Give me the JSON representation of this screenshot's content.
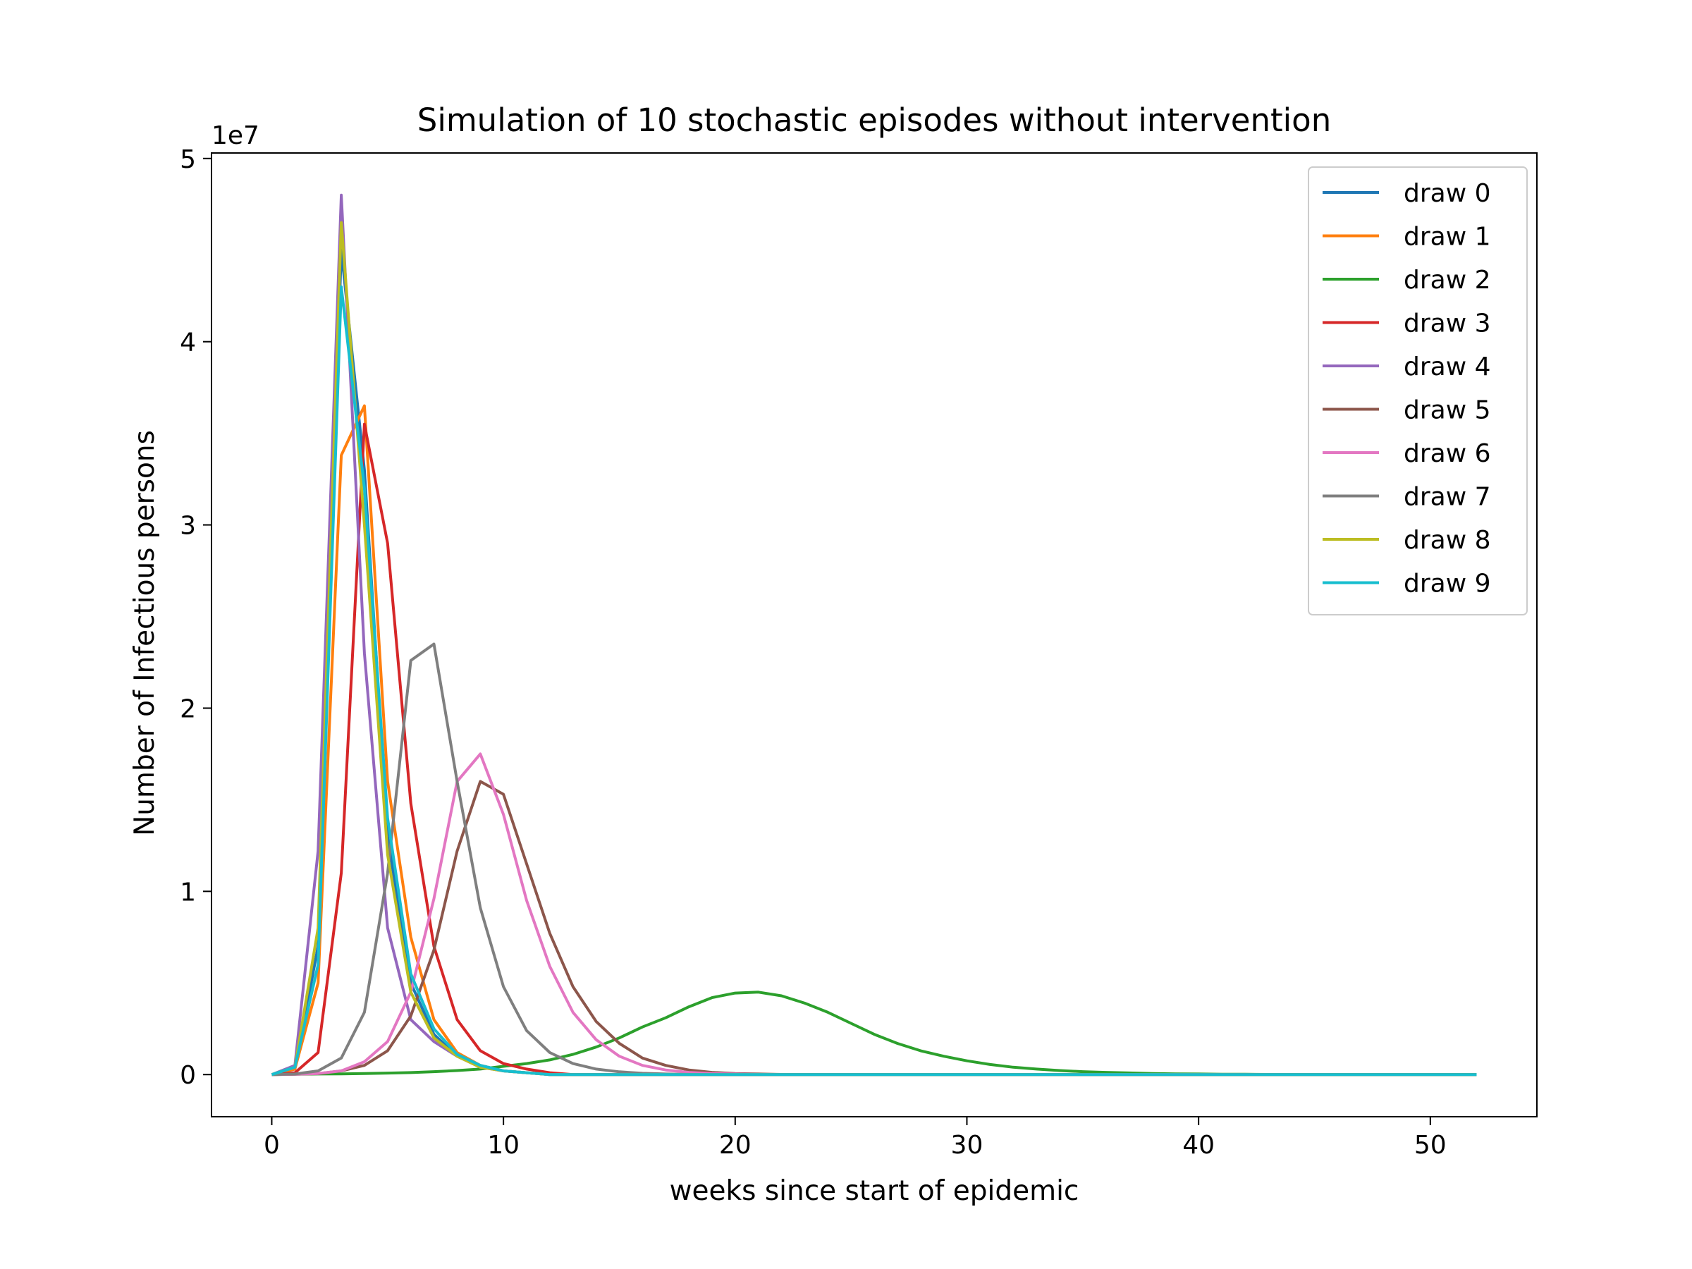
{
  "chart_data": {
    "type": "line",
    "title": "Simulation of 10 stochastic episodes without intervention",
    "xlabel": "weeks since start of epidemic",
    "ylabel": "Number of Infectious persons",
    "y_offset_label": "1e7",
    "xlim": [
      -2.6,
      54.6
    ],
    "ylim": [
      -0.23,
      5.03
    ],
    "x_ticks": [
      0,
      10,
      20,
      30,
      40,
      50
    ],
    "y_ticks": [
      0,
      1,
      2,
      3,
      4,
      5
    ],
    "grid": false,
    "legend_position": "top-right",
    "x": [
      0,
      1,
      2,
      3,
      4,
      5,
      6,
      7,
      8,
      9,
      10,
      11,
      12,
      13,
      14,
      15,
      16,
      17,
      18,
      19,
      20,
      21,
      22,
      23,
      24,
      25,
      26,
      27,
      28,
      29,
      30,
      31,
      32,
      33,
      34,
      35,
      36,
      37,
      38,
      39,
      40,
      41,
      42,
      43,
      44,
      45,
      46,
      47,
      48,
      49,
      50,
      51,
      52
    ],
    "series": [
      {
        "name": "draw 0",
        "color": "#1f77b4",
        "values": [
          0,
          0.03,
          0.7,
          4.5,
          3.3,
          1.3,
          0.5,
          0.22,
          0.1,
          0.05,
          0.02,
          0.01,
          0,
          0,
          0,
          0,
          0,
          0,
          0,
          0,
          0,
          0,
          0,
          0,
          0,
          0,
          0,
          0,
          0,
          0,
          0,
          0,
          0,
          0,
          0,
          0,
          0,
          0,
          0,
          0,
          0,
          0,
          0,
          0,
          0,
          0,
          0,
          0,
          0,
          0,
          0,
          0,
          0
        ]
      },
      {
        "name": "draw 1",
        "color": "#ff7f0e",
        "values": [
          0,
          0.03,
          0.5,
          3.38,
          3.65,
          1.6,
          0.75,
          0.3,
          0.12,
          0.05,
          0.02,
          0.01,
          0,
          0,
          0,
          0,
          0,
          0,
          0,
          0,
          0,
          0,
          0,
          0,
          0,
          0,
          0,
          0,
          0,
          0,
          0,
          0,
          0,
          0,
          0,
          0,
          0,
          0,
          0,
          0,
          0,
          0,
          0,
          0,
          0,
          0,
          0,
          0,
          0,
          0,
          0,
          0,
          0
        ]
      },
      {
        "name": "draw 2",
        "color": "#2ca02c",
        "values": [
          0,
          0.002,
          0.003,
          0.004,
          0.006,
          0.008,
          0.011,
          0.016,
          0.022,
          0.03,
          0.045,
          0.06,
          0.08,
          0.11,
          0.15,
          0.2,
          0.26,
          0.31,
          0.37,
          0.42,
          0.445,
          0.45,
          0.43,
          0.39,
          0.34,
          0.28,
          0.22,
          0.17,
          0.13,
          0.1,
          0.075,
          0.055,
          0.04,
          0.03,
          0.022,
          0.016,
          0.012,
          0.009,
          0.006,
          0.004,
          0.003,
          0.002,
          0.0015,
          0.001,
          0.001,
          0.001,
          0,
          0,
          0,
          0,
          0,
          0,
          0
        ]
      },
      {
        "name": "draw 3",
        "color": "#d62728",
        "values": [
          0,
          0.01,
          0.12,
          1.1,
          3.55,
          2.9,
          1.48,
          0.7,
          0.3,
          0.13,
          0.06,
          0.03,
          0.01,
          0,
          0,
          0,
          0,
          0,
          0,
          0,
          0,
          0,
          0,
          0,
          0,
          0,
          0,
          0,
          0,
          0,
          0,
          0,
          0,
          0,
          0,
          0,
          0,
          0,
          0,
          0,
          0,
          0,
          0,
          0,
          0,
          0,
          0,
          0,
          0,
          0,
          0,
          0,
          0
        ]
      },
      {
        "name": "draw 4",
        "color": "#9467bd",
        "values": [
          0,
          0.05,
          1.22,
          4.8,
          2.3,
          0.8,
          0.3,
          0.18,
          0.1,
          0.04,
          0.02,
          0.01,
          0,
          0,
          0,
          0,
          0,
          0,
          0,
          0,
          0,
          0,
          0,
          0,
          0,
          0,
          0,
          0,
          0,
          0,
          0,
          0,
          0,
          0,
          0,
          0,
          0,
          0,
          0,
          0,
          0,
          0,
          0,
          0,
          0,
          0,
          0,
          0,
          0,
          0,
          0,
          0,
          0
        ]
      },
      {
        "name": "draw 5",
        "color": "#8c564b",
        "values": [
          0,
          0.002,
          0.005,
          0.02,
          0.05,
          0.13,
          0.32,
          0.68,
          1.22,
          1.6,
          1.53,
          1.15,
          0.77,
          0.48,
          0.29,
          0.17,
          0.09,
          0.05,
          0.025,
          0.012,
          0.006,
          0.003,
          0.001,
          0,
          0,
          0,
          0,
          0,
          0,
          0,
          0,
          0,
          0,
          0,
          0,
          0,
          0,
          0,
          0,
          0,
          0,
          0,
          0,
          0,
          0,
          0,
          0,
          0,
          0,
          0,
          0,
          0,
          0
        ]
      },
      {
        "name": "draw 6",
        "color": "#e377c2",
        "values": [
          0,
          0.002,
          0.006,
          0.02,
          0.07,
          0.18,
          0.45,
          0.96,
          1.6,
          1.75,
          1.42,
          0.95,
          0.59,
          0.34,
          0.19,
          0.1,
          0.05,
          0.025,
          0.012,
          0.006,
          0.003,
          0.001,
          0,
          0,
          0,
          0,
          0,
          0,
          0,
          0,
          0,
          0,
          0,
          0,
          0,
          0,
          0,
          0,
          0,
          0,
          0,
          0,
          0,
          0,
          0,
          0,
          0,
          0,
          0,
          0,
          0,
          0,
          0
        ]
      },
      {
        "name": "draw 7",
        "color": "#7f7f7f",
        "values": [
          0,
          0.003,
          0.02,
          0.09,
          0.34,
          1.1,
          2.26,
          2.35,
          1.6,
          0.91,
          0.48,
          0.24,
          0.12,
          0.06,
          0.03,
          0.015,
          0.007,
          0.003,
          0.001,
          0,
          0,
          0,
          0,
          0,
          0,
          0,
          0,
          0,
          0,
          0,
          0,
          0,
          0,
          0,
          0,
          0,
          0,
          0,
          0,
          0,
          0,
          0,
          0,
          0,
          0,
          0,
          0,
          0,
          0,
          0,
          0,
          0,
          0
        ]
      },
      {
        "name": "draw 8",
        "color": "#bcbd22",
        "values": [
          0,
          0.04,
          0.8,
          4.65,
          3.0,
          1.2,
          0.45,
          0.2,
          0.1,
          0.04,
          0.02,
          0.01,
          0,
          0,
          0,
          0,
          0,
          0,
          0,
          0,
          0,
          0,
          0,
          0,
          0,
          0,
          0,
          0,
          0,
          0,
          0,
          0,
          0,
          0,
          0,
          0,
          0,
          0,
          0,
          0,
          0,
          0,
          0,
          0,
          0,
          0,
          0,
          0,
          0,
          0,
          0,
          0,
          0
        ]
      },
      {
        "name": "draw 9",
        "color": "#17becf",
        "values": [
          0,
          0.04,
          0.6,
          4.3,
          3.2,
          1.4,
          0.55,
          0.25,
          0.11,
          0.05,
          0.02,
          0.01,
          0,
          0,
          0,
          0,
          0,
          0,
          0,
          0,
          0,
          0,
          0,
          0,
          0,
          0,
          0,
          0,
          0,
          0,
          0,
          0,
          0,
          0,
          0,
          0,
          0,
          0,
          0,
          0,
          0,
          0,
          0,
          0,
          0,
          0,
          0,
          0,
          0,
          0,
          0,
          0,
          0
        ]
      }
    ]
  }
}
